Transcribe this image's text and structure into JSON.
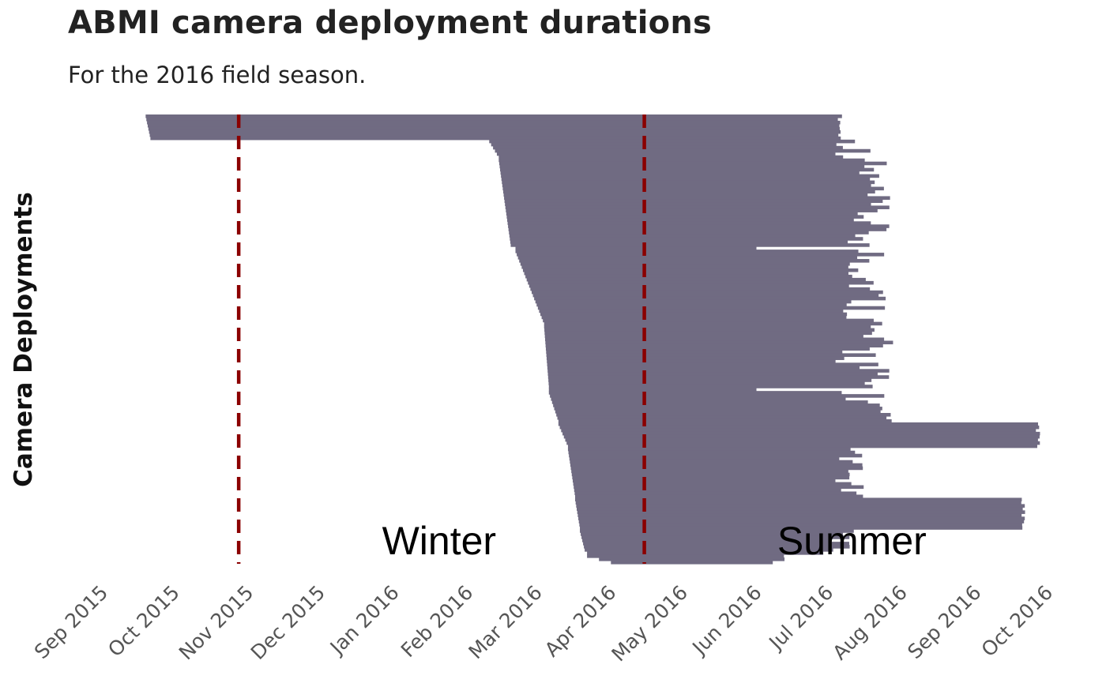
{
  "chart_data": {
    "type": "range-bar",
    "title": "ABMI camera deployment durations",
    "subtitle": "For the 2016 field season.",
    "ylabel": "Camera Deployments",
    "xlabel": "",
    "x_ticks": [
      "2015-09-01",
      "2015-10-01",
      "2015-11-01",
      "2015-12-01",
      "2016-01-01",
      "2016-02-01",
      "2016-03-01",
      "2016-04-01",
      "2016-05-01",
      "2016-06-01",
      "2016-07-01",
      "2016-08-01",
      "2016-09-01",
      "2016-10-01"
    ],
    "x_tick_labels": [
      "Sep 2015",
      "Oct 2015",
      "Nov 2015",
      "Dec 2015",
      "Jan 2016",
      "Feb 2016",
      "Mar 2016",
      "Apr 2016",
      "May 2016",
      "Jun 2016",
      "Jul 2016",
      "Aug 2016",
      "Sep 2016",
      "Oct 2016"
    ],
    "xlim": [
      "2015-09-01",
      "2016-10-01"
    ],
    "grid": false,
    "legend": "none",
    "bar_color": "#706b82",
    "ref_line_color": "#8b0000",
    "reference_lines": [
      {
        "date": "2015-10-28"
      },
      {
        "date": "2016-04-15"
      }
    ],
    "annotations": [
      {
        "text": "Winter",
        "date": "2016-01-20"
      },
      {
        "text": "Summer",
        "date": "2016-07-11"
      }
    ],
    "deployment_groups": [
      {
        "count": 8,
        "start": [
          "2015-09-19",
          "2015-09-21"
        ],
        "end": [
          "2016-07-05",
          "2016-07-07"
        ]
      },
      {
        "count": 6,
        "start": [
          "2016-02-10",
          "2016-02-14"
        ],
        "end": [
          "2016-07-04",
          "2016-07-22"
        ]
      },
      {
        "count": 28,
        "start": [
          "2016-02-14",
          "2016-02-19"
        ],
        "end": [
          "2016-07-08",
          "2016-07-27"
        ]
      },
      {
        "count": 1,
        "start": [
          "2016-02-21",
          "2016-02-21"
        ],
        "end": [
          "2016-06-01",
          "2016-06-01"
        ]
      },
      {
        "count": 24,
        "start": [
          "2016-02-21",
          "2016-03-04"
        ],
        "end": [
          "2016-07-07",
          "2016-07-29"
        ]
      },
      {
        "count": 20,
        "start": [
          "2016-03-04",
          "2016-03-06"
        ],
        "end": [
          "2016-07-03",
          "2016-07-29"
        ]
      },
      {
        "count": 1,
        "start": [
          "2016-03-06",
          "2016-03-06"
        ],
        "end": [
          "2016-06-01",
          "2016-06-01"
        ]
      },
      {
        "count": 10,
        "start": [
          "2016-03-06",
          "2016-03-10"
        ],
        "end": [
          "2016-07-05",
          "2016-07-29"
        ]
      },
      {
        "count": 8,
        "start": [
          "2016-03-10",
          "2016-03-14"
        ],
        "end": [
          "2016-09-26",
          "2016-09-28"
        ]
      },
      {
        "count": 16,
        "start": [
          "2016-03-14",
          "2016-03-17"
        ],
        "end": [
          "2016-07-03",
          "2016-07-16"
        ]
      },
      {
        "count": 10,
        "start": [
          "2016-03-17",
          "2016-03-19"
        ],
        "end": [
          "2016-09-20",
          "2016-09-22"
        ]
      },
      {
        "count": 7,
        "start": [
          "2016-03-19",
          "2016-03-21"
        ],
        "end": [
          "2016-07-01",
          "2016-07-12"
        ]
      },
      {
        "count": 1,
        "start": [
          "2016-03-22",
          "2016-03-22"
        ],
        "end": [
          "2016-06-29",
          "2016-06-29"
        ]
      },
      {
        "count": 3,
        "start": [
          "2016-03-22",
          "2016-04-01"
        ],
        "end": [
          "2016-06-01",
          "2016-07-22"
        ]
      }
    ]
  }
}
